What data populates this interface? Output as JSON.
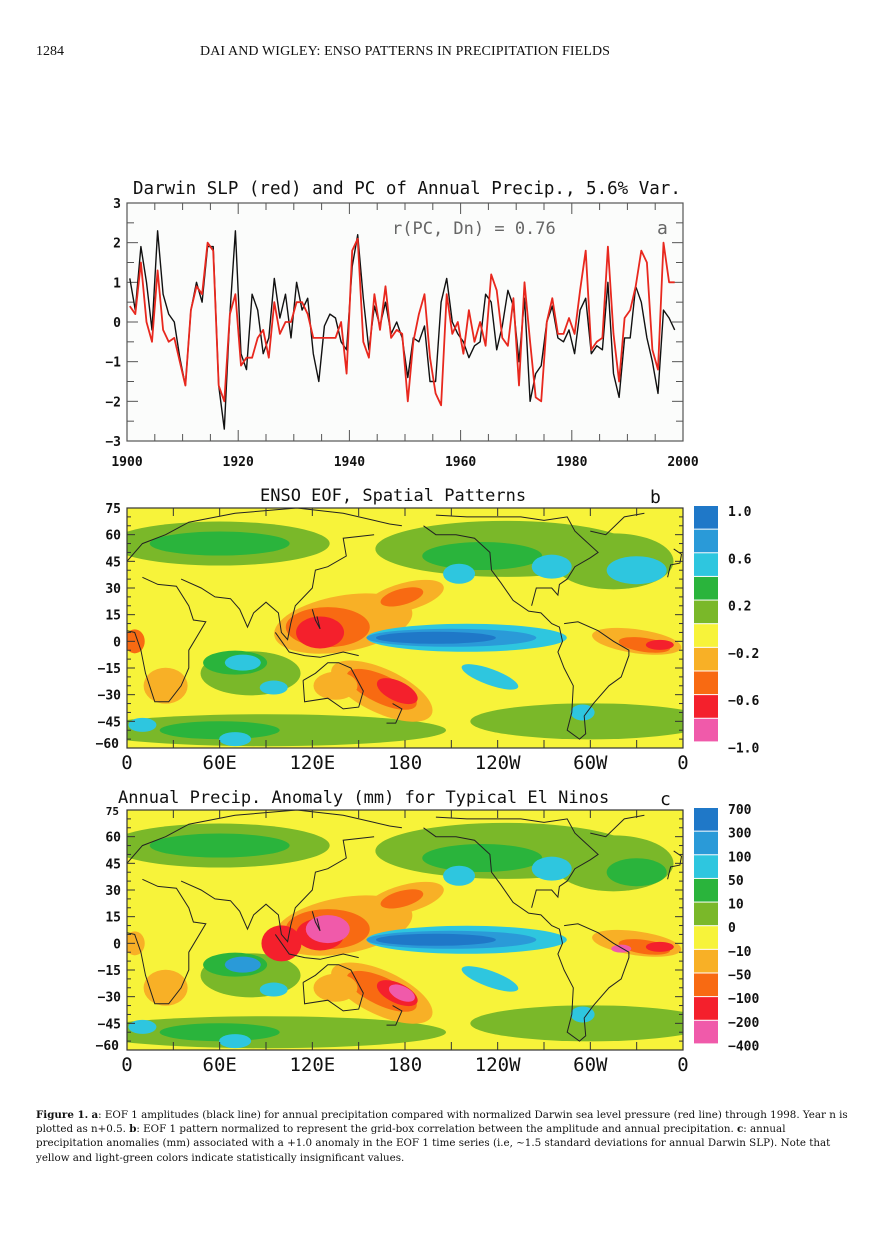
{
  "page_header": {
    "page_number": "1284",
    "running_title": "DAI AND WIGLEY: ENSO PATTERNS IN PRECIPITATION FIELDS"
  },
  "chart_data": [
    {
      "panel": "a",
      "type": "line",
      "title": "Darwin SLP (red) and PC of Annual Precip., 5.6% Var.",
      "annotation": "r(PC, Dn) = 0.76",
      "panel_label": "a",
      "xlabel": "",
      "ylabel": "",
      "xlim": [
        1900,
        2000
      ],
      "ylim": [
        -3,
        3
      ],
      "xticks": [
        "1900",
        "1920",
        "1940",
        "1960",
        "1980",
        "2000"
      ],
      "yticks": [
        "3",
        "2",
        "1",
        "0",
        "−1",
        "−2",
        "−3"
      ],
      "x_start": 1900.5,
      "x_step": 1,
      "series": [
        {
          "name": "PC of Annual Precip. (EOF 1 amplitude)",
          "color": "#111111",
          "values": [
            1.1,
            0.3,
            1.9,
            1.0,
            -0.2,
            2.3,
            0.7,
            0.2,
            0.0,
            -0.9,
            -1.6,
            0.3,
            1.0,
            0.5,
            1.9,
            1.9,
            -1.6,
            -2.7,
            0.2,
            2.3,
            -0.8,
            -1.2,
            0.7,
            0.3,
            -0.8,
            -0.4,
            1.1,
            0.1,
            0.7,
            -0.4,
            1.0,
            0.3,
            0.6,
            -0.8,
            -1.5,
            -0.1,
            0.2,
            0.1,
            -0.5,
            -0.7,
            1.4,
            2.2,
            0.6,
            -0.7,
            0.4,
            -0.1,
            0.5,
            -0.3,
            0.0,
            -0.4,
            -1.4,
            -0.4,
            -0.5,
            -0.1,
            -1.5,
            -1.5,
            0.5,
            1.1,
            0.0,
            -0.3,
            -0.5,
            -0.9,
            -0.6,
            -0.5,
            0.7,
            0.5,
            -0.7,
            -0.1,
            0.8,
            0.4,
            -1.0,
            0.6,
            -2.0,
            -1.3,
            -1.1,
            0.0,
            0.4,
            -0.4,
            -0.5,
            -0.2,
            -0.8,
            0.3,
            0.6,
            -0.8,
            -0.6,
            -0.7,
            1.0,
            -1.3,
            -1.9,
            -0.4,
            -0.4,
            0.9,
            0.5,
            -0.4,
            -1.0,
            -1.8,
            0.3,
            0.1,
            -0.2
          ],
          "note": "visual estimate"
        },
        {
          "name": "Darwin SLP (normalized)",
          "color": "#e8281e",
          "values": [
            0.4,
            0.2,
            1.5,
            0.0,
            -0.5,
            1.3,
            -0.2,
            -0.5,
            -0.4,
            -1.0,
            -1.6,
            0.3,
            0.9,
            0.7,
            2.0,
            1.8,
            -1.6,
            -2.0,
            0.2,
            0.7,
            -1.1,
            -0.9,
            -0.9,
            -0.4,
            -0.2,
            -0.9,
            0.5,
            -0.3,
            0.0,
            0.0,
            0.5,
            0.5,
            0.2,
            -0.4,
            -0.4,
            -0.4,
            -0.4,
            -0.4,
            0.0,
            -1.3,
            1.8,
            2.1,
            -0.5,
            -0.9,
            0.7,
            -0.2,
            0.9,
            -0.4,
            -0.2,
            -0.3,
            -2.0,
            -0.5,
            0.2,
            0.7,
            -0.9,
            -1.8,
            -2.1,
            0.7,
            -0.3,
            0.0,
            -0.8,
            0.3,
            -0.5,
            0.0,
            -0.6,
            1.2,
            0.8,
            -0.4,
            -0.6,
            0.6,
            -1.6,
            1.0,
            -0.5,
            -1.9,
            -2.0,
            0.0,
            0.6,
            -0.3,
            -0.3,
            0.1,
            -0.3,
            0.8,
            1.8,
            -0.7,
            -0.5,
            -0.4,
            1.9,
            -0.3,
            -1.5,
            0.1,
            0.3,
            0.9,
            1.8,
            1.5,
            -0.7,
            -1.2,
            2.0,
            1.0,
            1.0
          ],
          "note": "visual estimate"
        }
      ]
    },
    {
      "panel": "b",
      "type": "heatmap",
      "title": "ENSO EOF,  Spatial Patterns",
      "panel_label": "b",
      "xticks": [
        "0",
        "60E",
        "120E",
        "180",
        "120W",
        "60W",
        "0"
      ],
      "yticks": [
        "75",
        "60",
        "45",
        "30",
        "15",
        "0",
        "−15",
        "−30",
        "−45",
        "−60"
      ],
      "xlim": [
        0,
        360
      ],
      "ylim": [
        -60,
        75
      ],
      "colorbar": {
        "labels": [
          "1.0",
          "0.6",
          "0.2",
          "−0.2",
          "−0.6",
          "−1.0"
        ],
        "colors": [
          "#1f78c8",
          "#2a9ad8",
          "#2ec6df",
          "#2ab43c",
          "#7ab829",
          "#f7f33a",
          "#f8b026",
          "#f86a12",
          "#f4202c",
          "#f05aaa"
        ]
      }
    },
    {
      "panel": "c",
      "type": "heatmap",
      "title": "Annual Precip. Anomaly (mm) for Typical El Ninos",
      "panel_label": "c",
      "xticks": [
        "0",
        "60E",
        "120E",
        "180",
        "120W",
        "60W",
        "0"
      ],
      "yticks": [
        "75",
        "60",
        "45",
        "30",
        "15",
        "0",
        "−15",
        "−30",
        "−45",
        "−60"
      ],
      "xlim": [
        0,
        360
      ],
      "ylim": [
        -60,
        75
      ],
      "colorbar": {
        "labels": [
          "700",
          "300",
          "100",
          "50",
          "10",
          "0",
          "−10",
          "−50",
          "−100",
          "−200",
          "−400"
        ],
        "colors": [
          "#1f78c8",
          "#2a9ad8",
          "#2ec6df",
          "#2ab43c",
          "#7ab829",
          "#f7f33a",
          "#f8b026",
          "#f86a12",
          "#f4202c",
          "#f05aaa"
        ]
      }
    }
  ],
  "caption": {
    "label": "Figure 1.",
    "a_key": "a",
    "a_text": ": EOF 1 amplitudes (black line) for annual precipitation compared with normalized Darwin sea level pressure (red line) through 1998. Year n is plotted as n+0.5. ",
    "b_key": "b",
    "b_text": ": EOF 1 pattern normalized to represent the grid-box correlation between the amplitude and annual precipitation. ",
    "c_key": "c",
    "c_text": ": annual precipitation anomalies (mm) associated with a +1.0 anomaly in the EOF 1 time series (i.e, ∼1.5 standard deviations for annual Darwin SLP). Note that yellow and light-green colors indicate statistically insignificant values."
  }
}
